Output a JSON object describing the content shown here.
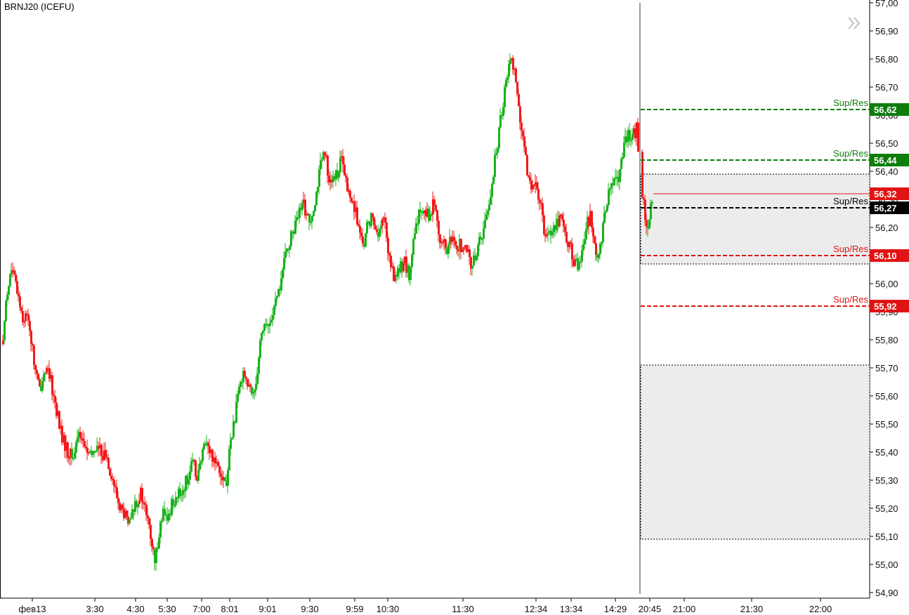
{
  "ticker": "BRNJ20 (ICEFU)",
  "colors": {
    "up": "#19b21b",
    "down": "#f21a1a",
    "support_green": "#0e7d0e",
    "support_red": "#e01414",
    "current_black": "#000000",
    "zone_fill": "#ececec"
  },
  "nav_icon": "double-chevron-right-icon",
  "chart_data": {
    "type": "candlestick",
    "title": "BRNJ20 (ICEFU)",
    "ylim": [
      54.88,
      57.02
    ],
    "y_ticks": [
      "57,00",
      "56,90",
      "56,80",
      "56,70",
      "56,60",
      "56,50",
      "56,40",
      "56,30",
      "56,20",
      "56,10",
      "56,00",
      "55,90",
      "55,80",
      "55,70",
      "55,60",
      "55,50",
      "55,40",
      "55,30",
      "55,20",
      "55,10",
      "55,00",
      "54,90"
    ],
    "x_ticks": [
      "фев13",
      "3:30",
      "4:30",
      "5:30",
      "7:00",
      "8:01",
      "9:01",
      "9:30",
      "9:59",
      "10:30",
      "11:30",
      "12:34",
      "13:34",
      "14:29",
      "20:45",
      "21:00",
      "21:30",
      "22:00"
    ],
    "price_path": [
      [
        0,
        55.62
      ],
      [
        8,
        55.95
      ],
      [
        16,
        56.05
      ],
      [
        24,
        55.98
      ],
      [
        32,
        55.88
      ],
      [
        40,
        55.88
      ],
      [
        48,
        55.72
      ],
      [
        56,
        55.62
      ],
      [
        64,
        55.7
      ],
      [
        72,
        55.65
      ],
      [
        80,
        55.55
      ],
      [
        88,
        55.45
      ],
      [
        96,
        55.4
      ],
      [
        104,
        55.38
      ],
      [
        112,
        55.48
      ],
      [
        120,
        55.42
      ],
      [
        128,
        55.38
      ],
      [
        136,
        55.42
      ],
      [
        144,
        55.4
      ],
      [
        152,
        55.38
      ],
      [
        160,
        55.3
      ],
      [
        168,
        55.22
      ],
      [
        176,
        55.18
      ],
      [
        184,
        55.14
      ],
      [
        192,
        55.22
      ],
      [
        200,
        55.25
      ],
      [
        208,
        55.18
      ],
      [
        214,
        55.1
      ],
      [
        220,
        55.0
      ],
      [
        226,
        55.12
      ],
      [
        232,
        55.18
      ],
      [
        238,
        55.15
      ],
      [
        244,
        55.22
      ],
      [
        250,
        55.24
      ],
      [
        256,
        55.25
      ],
      [
        262,
        55.28
      ],
      [
        268,
        55.32
      ],
      [
        274,
        55.36
      ],
      [
        280,
        55.32
      ],
      [
        286,
        55.36
      ],
      [
        292,
        55.45
      ],
      [
        298,
        55.4
      ],
      [
        304,
        55.38
      ],
      [
        310,
        55.36
      ],
      [
        316,
        55.32
      ],
      [
        322,
        55.28
      ],
      [
        328,
        55.45
      ],
      [
        334,
        55.52
      ],
      [
        340,
        55.62
      ],
      [
        346,
        55.7
      ],
      [
        352,
        55.64
      ],
      [
        358,
        55.6
      ],
      [
        364,
        55.65
      ],
      [
        370,
        55.8
      ],
      [
        376,
        55.86
      ],
      [
        382,
        55.84
      ],
      [
        388,
        55.9
      ],
      [
        394,
        55.94
      ],
      [
        400,
        56.02
      ],
      [
        408,
        56.12
      ],
      [
        416,
        56.18
      ],
      [
        424,
        56.24
      ],
      [
        432,
        56.28
      ],
      [
        440,
        56.22
      ],
      [
        448,
        56.3
      ],
      [
        456,
        56.42
      ],
      [
        462,
        56.46
      ],
      [
        468,
        56.38
      ],
      [
        474,
        56.36
      ],
      [
        480,
        56.4
      ],
      [
        486,
        56.44
      ],
      [
        492,
        56.36
      ],
      [
        498,
        56.3
      ],
      [
        504,
        56.28
      ],
      [
        510,
        56.2
      ],
      [
        516,
        56.12
      ],
      [
        522,
        56.2
      ],
      [
        528,
        56.24
      ],
      [
        534,
        56.2
      ],
      [
        540,
        56.18
      ],
      [
        546,
        56.24
      ],
      [
        552,
        56.12
      ],
      [
        558,
        56.04
      ],
      [
        564,
        56.02
      ],
      [
        570,
        56.06
      ],
      [
        576,
        56.08
      ],
      [
        582,
        56.02
      ],
      [
        588,
        56.14
      ],
      [
        594,
        56.22
      ],
      [
        600,
        56.28
      ],
      [
        606,
        56.26
      ],
      [
        612,
        56.24
      ],
      [
        618,
        56.3
      ],
      [
        624,
        56.18
      ],
      [
        630,
        56.14
      ],
      [
        636,
        56.12
      ],
      [
        642,
        56.16
      ],
      [
        648,
        56.12
      ],
      [
        654,
        56.14
      ],
      [
        660,
        56.12
      ],
      [
        666,
        56.1
      ],
      [
        672,
        56.06
      ],
      [
        678,
        56.12
      ],
      [
        684,
        56.16
      ],
      [
        690,
        56.22
      ],
      [
        696,
        56.28
      ],
      [
        702,
        56.4
      ],
      [
        708,
        56.5
      ],
      [
        714,
        56.62
      ],
      [
        720,
        56.72
      ],
      [
        726,
        56.8
      ],
      [
        732,
        56.78
      ],
      [
        738,
        56.62
      ],
      [
        744,
        56.5
      ],
      [
        750,
        56.4
      ],
      [
        756,
        56.36
      ],
      [
        762,
        56.34
      ],
      [
        768,
        56.3
      ],
      [
        774,
        56.2
      ],
      [
        780,
        56.18
      ],
      [
        786,
        56.2
      ],
      [
        792,
        56.22
      ],
      [
        798,
        56.24
      ],
      [
        804,
        56.18
      ],
      [
        810,
        56.14
      ],
      [
        816,
        56.08
      ],
      [
        822,
        56.06
      ],
      [
        828,
        56.12
      ],
      [
        834,
        56.2
      ],
      [
        840,
        56.24
      ],
      [
        846,
        56.12
      ],
      [
        852,
        56.1
      ],
      [
        858,
        56.2
      ],
      [
        864,
        56.3
      ],
      [
        870,
        56.34
      ],
      [
        876,
        56.36
      ],
      [
        882,
        56.4
      ],
      [
        888,
        56.48
      ],
      [
        894,
        56.54
      ],
      [
        900,
        56.52
      ],
      [
        906,
        56.55
      ],
      [
        910,
        56.42
      ],
      [
        914,
        56.32
      ],
      [
        920,
        56.2
      ],
      [
        924,
        56.24
      ],
      [
        928,
        56.3
      ]
    ],
    "levels": [
      {
        "price": 56.62,
        "label": "Sup/Res",
        "price_label": "56,62",
        "color": "#0e7d0e"
      },
      {
        "price": 56.44,
        "label": "Sup/Res",
        "price_label": "56,44",
        "color": "#0e7d0e"
      },
      {
        "price": 56.27,
        "label": "Sup/Res",
        "price_label": "56,27",
        "color": "#000000"
      },
      {
        "price": 56.1,
        "label": "Sup/Res",
        "price_label": "56,10",
        "color": "#e01414"
      },
      {
        "price": 55.92,
        "label": "Sup/Res",
        "price_label": "55,92",
        "color": "#e01414"
      }
    ],
    "current_price": {
      "price": 56.32,
      "price_label": "56,32",
      "color": "#e01414"
    },
    "zones": [
      {
        "from": 56.07,
        "to": 56.39
      },
      {
        "from": 55.09,
        "to": 55.71
      }
    ]
  }
}
